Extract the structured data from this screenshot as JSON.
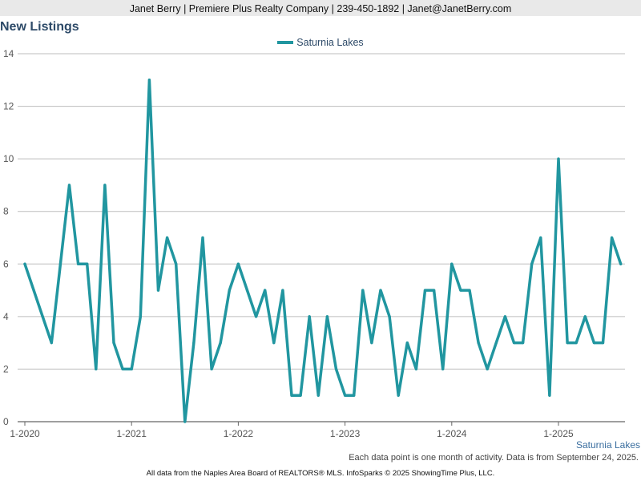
{
  "header": {
    "contact_line": "Janet Berry | Premiere Plus Realty Company | 239-450-1892 | Janet@JanetBerry.com"
  },
  "footer": {
    "series_label": "Saturnia Lakes",
    "note": "Each data point is one month of activity. Data is from September 24, 2025.",
    "credit": "All data from the Naples Area Board of REALTORS® MLS. InfoSparks © 2025 ShowingTime Plus, LLC."
  },
  "chart_data": {
    "type": "line",
    "title": "New Listings",
    "xlabel": "",
    "ylabel": "",
    "ylim": [
      0,
      14
    ],
    "yticks": [
      0,
      2,
      4,
      6,
      8,
      10,
      12,
      14
    ],
    "xticks": [
      "1-2020",
      "1-2021",
      "1-2022",
      "1-2023",
      "1-2024",
      "1-2025"
    ],
    "grid": true,
    "legend_position": "top-center",
    "x": [
      "2020-01",
      "2020-02",
      "2020-03",
      "2020-04",
      "2020-05",
      "2020-06",
      "2020-07",
      "2020-08",
      "2020-09",
      "2020-10",
      "2020-11",
      "2020-12",
      "2021-01",
      "2021-02",
      "2021-03",
      "2021-04",
      "2021-05",
      "2021-06",
      "2021-07",
      "2021-08",
      "2021-09",
      "2021-10",
      "2021-11",
      "2021-12",
      "2022-01",
      "2022-02",
      "2022-03",
      "2022-04",
      "2022-05",
      "2022-06",
      "2022-07",
      "2022-08",
      "2022-09",
      "2022-10",
      "2022-11",
      "2022-12",
      "2023-01",
      "2023-02",
      "2023-03",
      "2023-04",
      "2023-05",
      "2023-06",
      "2023-07",
      "2023-08",
      "2023-09",
      "2023-10",
      "2023-11",
      "2023-12",
      "2024-01",
      "2024-02",
      "2024-03",
      "2024-04",
      "2024-05",
      "2024-06",
      "2024-07",
      "2024-08",
      "2024-09",
      "2024-10",
      "2024-11",
      "2024-12",
      "2025-01",
      "2025-02",
      "2025-03",
      "2025-04",
      "2025-05",
      "2025-06",
      "2025-07",
      "2025-08"
    ],
    "series": [
      {
        "name": "Saturnia Lakes",
        "color": "#2196a0",
        "values": [
          6,
          5,
          4,
          3,
          6,
          9,
          6,
          6,
          2,
          9,
          3,
          2,
          2,
          4,
          13,
          5,
          7,
          6,
          0,
          3,
          7,
          2,
          3,
          5,
          6,
          5,
          4,
          5,
          3,
          5,
          1,
          1,
          4,
          1,
          4,
          2,
          1,
          1,
          5,
          3,
          5,
          4,
          1,
          3,
          2,
          5,
          5,
          2,
          6,
          5,
          5,
          3,
          2,
          3,
          4,
          3,
          3,
          6,
          7,
          1,
          10,
          3,
          3,
          4,
          3,
          3,
          7,
          6
        ]
      }
    ]
  }
}
